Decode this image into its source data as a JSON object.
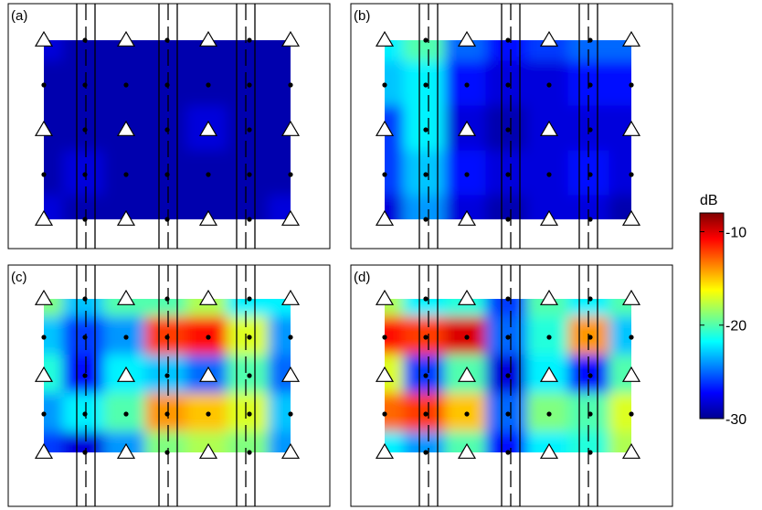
{
  "colorbar": {
    "unit": "dB",
    "ticks": [
      {
        "value": -10,
        "label": "-10"
      },
      {
        "value": -20,
        "label": "-20"
      },
      {
        "value": -30,
        "label": "-30"
      }
    ],
    "min": -30,
    "max": -8
  },
  "chart_data": {
    "type": "heatmap",
    "colorbar_label": "dB",
    "clim": [
      -30,
      -8
    ],
    "grid": {
      "cols": 7,
      "rows": 5
    },
    "panels": [
      {
        "label": "(a)",
        "values": [
          [
            -28,
            -29,
            -29,
            -29,
            -29,
            -29,
            -29
          ],
          [
            -29,
            -29,
            -29,
            -29,
            -29,
            -29,
            -29
          ],
          [
            -29,
            -29,
            -29,
            -29,
            -28,
            -29,
            -29
          ],
          [
            -29,
            -28,
            -29,
            -29,
            -29,
            -29,
            -29
          ],
          [
            -28,
            -29,
            -29,
            -29,
            -29,
            -29,
            -28
          ]
        ]
      },
      {
        "label": "(b)",
        "values": [
          [
            -22,
            -20,
            -25,
            -27,
            -26,
            -25,
            -25
          ],
          [
            -23,
            -22,
            -27,
            -28,
            -28,
            -27,
            -27
          ],
          [
            -26,
            -22,
            -28,
            -29,
            -28,
            -28,
            -28
          ],
          [
            -26,
            -23,
            -27,
            -28,
            -28,
            -27,
            -28
          ],
          [
            -28,
            -24,
            -28,
            -29,
            -28,
            -28,
            -29
          ]
        ]
      },
      {
        "label": "(c)",
        "values": [
          [
            -19,
            -23,
            -20,
            -20,
            -18,
            -22,
            -22
          ],
          [
            -23,
            -26,
            -24,
            -12,
            -11,
            -17,
            -24
          ],
          [
            -21,
            -27,
            -22,
            -23,
            -25,
            -20,
            -25
          ],
          [
            -24,
            -22,
            -20,
            -14,
            -15,
            -17,
            -23
          ],
          [
            -26,
            -28,
            -24,
            -19,
            -18,
            -19,
            -24
          ]
        ]
      },
      {
        "label": "(d)",
        "values": [
          [
            -18,
            -22,
            -21,
            -26,
            -20,
            -22,
            -20
          ],
          [
            -11,
            -12,
            -10,
            -25,
            -21,
            -14,
            -23
          ],
          [
            -17,
            -26,
            -20,
            -28,
            -22,
            -27,
            -20
          ],
          [
            -13,
            -12,
            -15,
            -25,
            -19,
            -20,
            -17
          ],
          [
            -22,
            -24,
            -20,
            -27,
            -22,
            -21,
            -18
          ]
        ]
      }
    ],
    "markers": {
      "triangles_at": [
        [
          0,
          0
        ],
        [
          2,
          0
        ],
        [
          4,
          0
        ],
        [
          6,
          0
        ],
        [
          0,
          2
        ],
        [
          2,
          2
        ],
        [
          4,
          2
        ],
        [
          6,
          2
        ],
        [
          0,
          4
        ],
        [
          2,
          4
        ],
        [
          4,
          4
        ],
        [
          6,
          4
        ]
      ],
      "dots": "all other grid nodes"
    }
  }
}
